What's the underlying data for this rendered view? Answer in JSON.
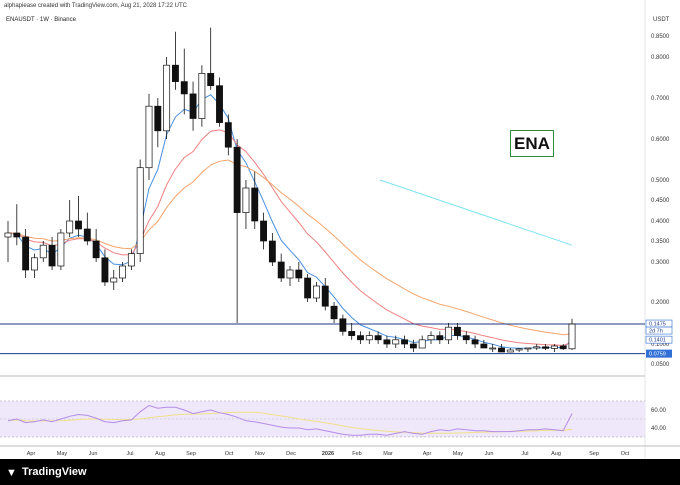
{
  "header": {
    "caption": "alphapiease created with TradingView.com, Aug 21, 2028 17:22 UTC"
  },
  "symbol": {
    "label": "ENAUSDT · 1W · Binance"
  },
  "annotation": {
    "ticker": "ENA"
  },
  "axis": {
    "currency": "USDT",
    "price_ticks": [
      "0.8500",
      "0.8000",
      "0.7000",
      "0.6000",
      "0.5000",
      "0.4500",
      "0.4000",
      "0.3500",
      "0.3000",
      "0.2000",
      "0.1000",
      "0.0500"
    ],
    "price_tags": [
      {
        "text": "0.1475",
        "kind": "outline"
      },
      {
        "text": "2d 7h",
        "kind": "outline"
      },
      {
        "text": "0.1401",
        "kind": "outline"
      },
      {
        "text": "0.0759",
        "kind": "filled"
      }
    ],
    "rsi_ticks": [
      "60.00",
      "40.00"
    ],
    "time_ticks": [
      "Apr",
      "May",
      "Jun",
      "Jul",
      "Aug",
      "Sep",
      "Oct",
      "Nov",
      "Dec",
      "2026",
      "Feb",
      "Mar",
      "Apr",
      "May",
      "Jun",
      "Jul",
      "Aug",
      "Sep",
      "Oct"
    ]
  },
  "colors": {
    "fast_ma": "#4a90e2",
    "mid_ma": "#f08080",
    "slow_ma": "#f5a36b",
    "projection": "#7fe3f0",
    "rsi_line": "#b48ce8",
    "rsi_signal": "#f0e08a",
    "horizontal_line": "#1e3a8a"
  },
  "footer": {
    "brand": "TradingView"
  },
  "chart_data": {
    "type": "candlestick",
    "title": "",
    "ylim": [
      0.03,
      0.9
    ],
    "candles": [
      {
        "o": 0.36,
        "h": 0.4,
        "l": 0.3,
        "c": 0.37
      },
      {
        "o": 0.37,
        "h": 0.44,
        "l": 0.34,
        "c": 0.36
      },
      {
        "o": 0.36,
        "h": 0.38,
        "l": 0.26,
        "c": 0.28
      },
      {
        "o": 0.28,
        "h": 0.32,
        "l": 0.26,
        "c": 0.31
      },
      {
        "o": 0.31,
        "h": 0.35,
        "l": 0.3,
        "c": 0.34
      },
      {
        "o": 0.34,
        "h": 0.36,
        "l": 0.28,
        "c": 0.29
      },
      {
        "o": 0.29,
        "h": 0.38,
        "l": 0.28,
        "c": 0.37
      },
      {
        "o": 0.37,
        "h": 0.45,
        "l": 0.36,
        "c": 0.4
      },
      {
        "o": 0.4,
        "h": 0.46,
        "l": 0.36,
        "c": 0.38
      },
      {
        "o": 0.38,
        "h": 0.42,
        "l": 0.34,
        "c": 0.35
      },
      {
        "o": 0.35,
        "h": 0.38,
        "l": 0.3,
        "c": 0.31
      },
      {
        "o": 0.31,
        "h": 0.33,
        "l": 0.24,
        "c": 0.25
      },
      {
        "o": 0.25,
        "h": 0.28,
        "l": 0.23,
        "c": 0.26
      },
      {
        "o": 0.26,
        "h": 0.3,
        "l": 0.25,
        "c": 0.29
      },
      {
        "o": 0.29,
        "h": 0.33,
        "l": 0.28,
        "c": 0.32
      },
      {
        "o": 0.32,
        "h": 0.55,
        "l": 0.3,
        "c": 0.53
      },
      {
        "o": 0.53,
        "h": 0.71,
        "l": 0.5,
        "c": 0.68
      },
      {
        "o": 0.68,
        "h": 0.7,
        "l": 0.58,
        "c": 0.62
      },
      {
        "o": 0.62,
        "h": 0.8,
        "l": 0.6,
        "c": 0.78
      },
      {
        "o": 0.78,
        "h": 0.86,
        "l": 0.72,
        "c": 0.74
      },
      {
        "o": 0.74,
        "h": 0.82,
        "l": 0.66,
        "c": 0.71
      },
      {
        "o": 0.71,
        "h": 0.74,
        "l": 0.62,
        "c": 0.65
      },
      {
        "o": 0.65,
        "h": 0.78,
        "l": 0.63,
        "c": 0.76
      },
      {
        "o": 0.76,
        "h": 0.87,
        "l": 0.72,
        "c": 0.73
      },
      {
        "o": 0.73,
        "h": 0.75,
        "l": 0.63,
        "c": 0.64
      },
      {
        "o": 0.64,
        "h": 0.66,
        "l": 0.56,
        "c": 0.58
      },
      {
        "o": 0.58,
        "h": 0.6,
        "l": 0.15,
        "c": 0.42
      },
      {
        "o": 0.42,
        "h": 0.5,
        "l": 0.38,
        "c": 0.48
      },
      {
        "o": 0.48,
        "h": 0.52,
        "l": 0.38,
        "c": 0.4
      },
      {
        "o": 0.4,
        "h": 0.42,
        "l": 0.33,
        "c": 0.35
      },
      {
        "o": 0.35,
        "h": 0.37,
        "l": 0.29,
        "c": 0.3
      },
      {
        "o": 0.3,
        "h": 0.32,
        "l": 0.25,
        "c": 0.26
      },
      {
        "o": 0.26,
        "h": 0.29,
        "l": 0.24,
        "c": 0.28
      },
      {
        "o": 0.28,
        "h": 0.3,
        "l": 0.25,
        "c": 0.26
      },
      {
        "o": 0.26,
        "h": 0.27,
        "l": 0.2,
        "c": 0.21
      },
      {
        "o": 0.21,
        "h": 0.25,
        "l": 0.2,
        "c": 0.24
      },
      {
        "o": 0.24,
        "h": 0.26,
        "l": 0.18,
        "c": 0.19
      },
      {
        "o": 0.19,
        "h": 0.2,
        "l": 0.15,
        "c": 0.16
      },
      {
        "o": 0.16,
        "h": 0.17,
        "l": 0.12,
        "c": 0.13
      },
      {
        "o": 0.13,
        "h": 0.15,
        "l": 0.11,
        "c": 0.12
      },
      {
        "o": 0.12,
        "h": 0.13,
        "l": 0.1,
        "c": 0.11
      },
      {
        "o": 0.11,
        "h": 0.13,
        "l": 0.1,
        "c": 0.12
      },
      {
        "o": 0.12,
        "h": 0.13,
        "l": 0.1,
        "c": 0.11
      },
      {
        "o": 0.11,
        "h": 0.12,
        "l": 0.09,
        "c": 0.1
      },
      {
        "o": 0.1,
        "h": 0.12,
        "l": 0.09,
        "c": 0.11
      },
      {
        "o": 0.11,
        "h": 0.12,
        "l": 0.09,
        "c": 0.1
      },
      {
        "o": 0.1,
        "h": 0.11,
        "l": 0.08,
        "c": 0.09
      },
      {
        "o": 0.09,
        "h": 0.12,
        "l": 0.09,
        "c": 0.11
      },
      {
        "o": 0.11,
        "h": 0.13,
        "l": 0.1,
        "c": 0.12
      },
      {
        "o": 0.12,
        "h": 0.13,
        "l": 0.1,
        "c": 0.11
      },
      {
        "o": 0.11,
        "h": 0.15,
        "l": 0.1,
        "c": 0.14
      },
      {
        "o": 0.14,
        "h": 0.15,
        "l": 0.11,
        "c": 0.12
      },
      {
        "o": 0.12,
        "h": 0.13,
        "l": 0.1,
        "c": 0.11
      },
      {
        "o": 0.11,
        "h": 0.12,
        "l": 0.09,
        "c": 0.1
      },
      {
        "o": 0.1,
        "h": 0.11,
        "l": 0.09,
        "c": 0.09
      },
      {
        "o": 0.09,
        "h": 0.1,
        "l": 0.08,
        "c": 0.09
      },
      {
        "o": 0.09,
        "h": 0.1,
        "l": 0.08,
        "c": 0.08
      },
      {
        "o": 0.08,
        "h": 0.09,
        "l": 0.08,
        "c": 0.085
      },
      {
        "o": 0.085,
        "h": 0.09,
        "l": 0.08,
        "c": 0.088
      },
      {
        "o": 0.088,
        "h": 0.09,
        "l": 0.08,
        "c": 0.09
      },
      {
        "o": 0.09,
        "h": 0.1,
        "l": 0.085,
        "c": 0.093
      },
      {
        "o": 0.093,
        "h": 0.1,
        "l": 0.085,
        "c": 0.089
      },
      {
        "o": 0.089,
        "h": 0.1,
        "l": 0.08,
        "c": 0.095
      },
      {
        "o": 0.095,
        "h": 0.1,
        "l": 0.085,
        "c": 0.088
      },
      {
        "o": 0.088,
        "h": 0.16,
        "l": 0.085,
        "c": 0.1475
      }
    ],
    "horizontal_levels": [
      0.1475,
      0.0759
    ],
    "rsi": {
      "ylim": [
        20,
        80
      ],
      "band": [
        30,
        70
      ],
      "values": [
        48,
        50,
        46,
        47,
        49,
        47,
        50,
        53,
        55,
        54,
        51,
        47,
        46,
        48,
        49,
        58,
        65,
        62,
        63,
        63,
        60,
        56,
        58,
        60,
        57,
        55,
        52,
        48,
        47,
        45,
        43,
        41,
        40,
        40,
        38,
        39,
        37,
        35,
        33,
        32,
        32,
        33,
        33,
        32,
        34,
        36,
        34,
        33,
        36,
        38,
        37,
        39,
        38,
        37,
        37,
        36,
        36,
        36,
        37,
        38,
        38,
        39,
        38,
        37,
        56
      ]
    }
  }
}
